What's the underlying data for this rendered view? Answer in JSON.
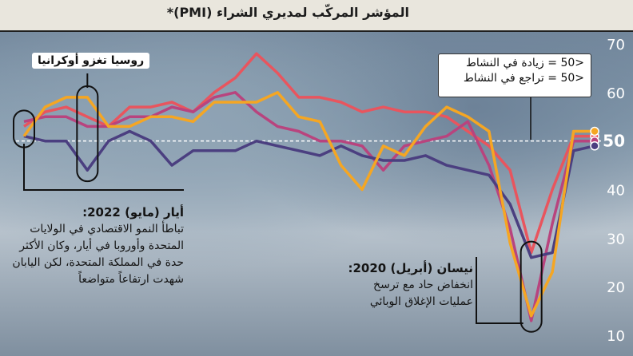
{
  "title": "المؤشر المركّب لمديري الشراء  (PMI)*",
  "legend_box": {
    "line1": "<50 = زيادة في النشاط",
    "line2": "<50 = تراجع في النشاط"
  },
  "annotations": {
    "russia": "روسيا تغزو أوكرانيا",
    "may_2022": {
      "head": "أيار (مايو) 2022:",
      "body": "تباطأ النمو الاقتصادي في الولايات المتحدة وأوروبا في أيار، وكان الأكثر حدة في المملكة المتحدة، لكن اليابان شهدت ارتفاعاً متواضعاً"
    },
    "apr_2020": {
      "head": "نيسان (أبريل) 2020:",
      "body": "انخفاض حاد مع ترسخ عمليات الإغلاق الوبائي"
    }
  },
  "colors": {
    "red": "#e8555e",
    "pink": "#b8447e",
    "purple": "#4b3f80",
    "orange": "#f5a623",
    "title_bar": "#e9e6dd"
  },
  "chart_data": {
    "type": "line",
    "title": "المؤشر المركّب لمديري الشراء  (PMI)*",
    "y_ticks": [
      10,
      20,
      30,
      40,
      50,
      60,
      70
    ],
    "ylim": [
      10,
      70
    ],
    "reference_line": 50,
    "x": [
      0,
      1,
      2,
      3,
      4,
      5,
      6,
      7,
      8,
      9,
      10,
      11,
      12,
      13,
      14,
      15,
      16,
      17,
      18,
      19,
      20,
      21,
      22,
      23,
      24,
      25,
      26,
      27
    ],
    "series": [
      {
        "color": "red",
        "values": [
          53,
          56,
          57,
          55,
          53,
          57,
          57,
          58,
          56,
          60,
          63,
          68,
          64,
          59,
          59,
          58,
          56,
          57,
          56,
          56,
          55,
          52,
          49,
          44,
          27,
          40,
          51,
          51
        ]
      },
      {
        "color": "pink",
        "values": [
          54,
          55,
          55,
          53,
          53,
          55,
          55,
          57,
          56,
          59,
          60,
          56,
          53,
          52,
          50,
          50,
          49,
          44,
          49,
          50,
          51,
          54,
          45,
          32,
          13,
          33,
          50,
          50
        ]
      },
      {
        "color": "purple",
        "values": [
          51,
          50,
          50,
          44,
          50,
          52,
          50,
          45,
          48,
          48,
          48,
          50,
          49,
          48,
          47,
          49,
          47,
          46,
          46,
          47,
          45,
          44,
          43,
          37,
          26,
          27,
          48,
          49
        ]
      },
      {
        "color": "orange",
        "values": [
          51,
          57,
          59,
          59,
          53,
          53,
          55,
          55,
          54,
          58,
          58,
          58,
          60,
          55,
          54,
          45,
          40,
          49,
          47,
          53,
          57,
          55,
          52,
          29,
          14,
          23,
          52,
          52
        ]
      }
    ]
  }
}
